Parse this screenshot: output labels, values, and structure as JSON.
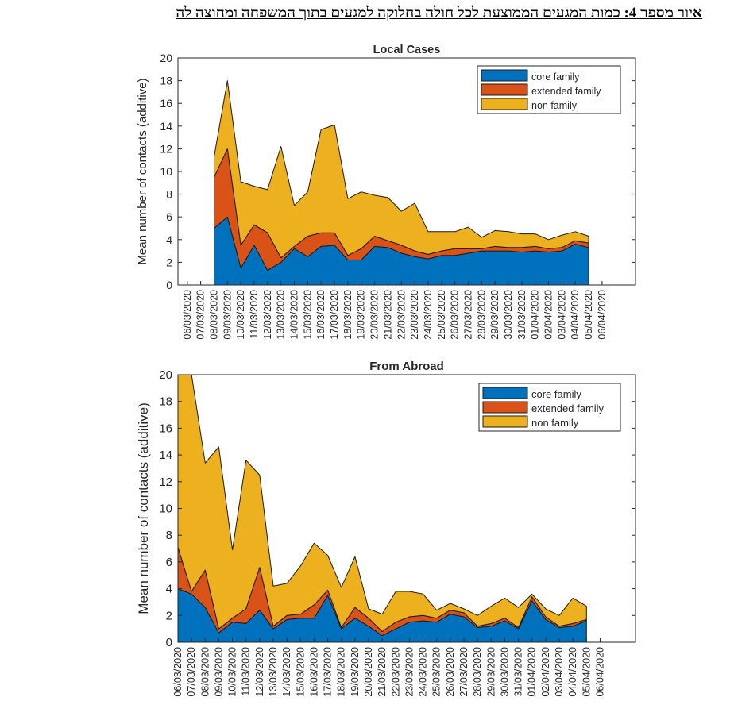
{
  "figure_title": "איור מספר 4: כמות המגעים הממוצעת לכל חולה בחלוקה למגעים בתוך המשפחה ומחוצה לה",
  "chart_data": [
    {
      "type": "area",
      "stacked": true,
      "title": "Local Cases",
      "xlabel": "",
      "ylabel": "Mean number of contacts (additive)",
      "ylim": [
        0,
        20
      ],
      "yticks": [
        0,
        2,
        4,
        6,
        8,
        10,
        12,
        14,
        16,
        18,
        20
      ],
      "grid": false,
      "legend_position": "top-right",
      "categories": [
        "06/03/2020",
        "07/03/2020",
        "08/03/2020",
        "09/03/2020",
        "10/03/2020",
        "11/03/2020",
        "12/03/2020",
        "13/03/2020",
        "14/03/2020",
        "15/03/2020",
        "16/03/2020",
        "17/03/2020",
        "18/03/2020",
        "19/03/2020",
        "20/03/2020",
        "21/03/2020",
        "22/03/2020",
        "23/03/2020",
        "24/03/2020",
        "25/03/2020",
        "26/03/2020",
        "27/03/2020",
        "28/03/2020",
        "29/03/2020",
        "30/03/2020",
        "31/03/2020",
        "01/04/2020",
        "02/04/2020",
        "03/04/2020",
        "04/04/2020",
        "05/04/2020",
        "06/04/2020"
      ],
      "x_positions": [
        1,
        2,
        3,
        4,
        5,
        6,
        7,
        8,
        9,
        10,
        11,
        12,
        13,
        14,
        15,
        16,
        17,
        18,
        19,
        20,
        21,
        22,
        23,
        24,
        25,
        26,
        27,
        28,
        29,
        30,
        31,
        32
      ],
      "xlim": [
        0.3,
        34.5
      ],
      "series": [
        {
          "name": "core family",
          "color": "#0072BD",
          "values": [
            null,
            null,
            5.0,
            6.0,
            1.5,
            3.5,
            1.3,
            2.0,
            3.2,
            2.5,
            3.4,
            3.5,
            2.2,
            2.2,
            3.4,
            3.3,
            2.8,
            2.5,
            2.3,
            2.6,
            2.6,
            2.8,
            3.0,
            3.0,
            3.0,
            2.9,
            3.0,
            2.9,
            3.0,
            3.6,
            3.3,
            null
          ]
        },
        {
          "name": "extended family",
          "color": "#D95319",
          "values": [
            null,
            null,
            4.5,
            6.0,
            2.0,
            1.8,
            3.3,
            0.4,
            0.2,
            1.8,
            1.2,
            1.1,
            0.4,
            1.0,
            0.9,
            0.6,
            0.7,
            0.5,
            0.4,
            0.4,
            0.6,
            0.4,
            0.2,
            0.4,
            0.3,
            0.4,
            0.4,
            0.3,
            0.3,
            0.3,
            0.4,
            null
          ]
        },
        {
          "name": "non family",
          "color": "#EDB120",
          "values": [
            null,
            null,
            1.8,
            6.0,
            5.6,
            3.4,
            3.8,
            9.8,
            3.6,
            3.9,
            9.1,
            9.5,
            5.0,
            5.0,
            3.6,
            3.8,
            3.0,
            4.2,
            2.0,
            1.7,
            1.5,
            1.9,
            1.0,
            1.4,
            1.4,
            1.2,
            1.1,
            0.8,
            1.1,
            0.8,
            0.6,
            null
          ]
        }
      ]
    },
    {
      "type": "area",
      "stacked": true,
      "title": "From Abroad",
      "xlabel": "",
      "ylabel": "Mean number of contacts (additive)",
      "ylim": [
        0,
        20
      ],
      "yticks": [
        0,
        2,
        4,
        6,
        8,
        10,
        12,
        14,
        16,
        18,
        20
      ],
      "grid": false,
      "legend_position": "top-right",
      "categories": [
        "06/03/2020",
        "07/03/2020",
        "08/03/2020",
        "09/03/2020",
        "10/03/2020",
        "11/03/2020",
        "12/03/2020",
        "13/03/2020",
        "14/03/2020",
        "15/03/2020",
        "16/03/2020",
        "17/03/2020",
        "18/03/2020",
        "19/03/2020",
        "20/03/2020",
        "21/03/2020",
        "22/03/2020",
        "23/03/2020",
        "24/03/2020",
        "25/03/2020",
        "26/03/2020",
        "27/03/2020",
        "28/03/2020",
        "29/03/2020",
        "30/03/2020",
        "31/03/2020",
        "01/04/2020",
        "02/04/2020",
        "03/04/2020",
        "04/04/2020",
        "05/04/2020",
        "06/04/2020"
      ],
      "x_positions": [
        1,
        2,
        3,
        4,
        5,
        6,
        7,
        8,
        9,
        10,
        11,
        12,
        13,
        14,
        15,
        16,
        17,
        18,
        19,
        20,
        21,
        22,
        23,
        24,
        25,
        26,
        27,
        28,
        29,
        30,
        31,
        32
      ],
      "xlim": [
        1.0,
        34.6
      ],
      "series": [
        {
          "name": "core family",
          "color": "#0072BD",
          "values": [
            4.0,
            3.6,
            2.6,
            0.7,
            1.5,
            1.4,
            2.4,
            1.0,
            1.7,
            1.8,
            1.8,
            3.5,
            1.0,
            1.8,
            1.2,
            0.5,
            1.0,
            1.5,
            1.6,
            1.5,
            2.1,
            1.9,
            1.1,
            1.2,
            1.6,
            1.0,
            3.1,
            1.7,
            1.1,
            1.2,
            1.6,
            null
          ]
        },
        {
          "name": "extended family",
          "color": "#D95319",
          "values": [
            3.1,
            0.2,
            2.8,
            0.3,
            0.3,
            1.1,
            3.2,
            0.2,
            0.3,
            0.3,
            1.0,
            0.4,
            0.1,
            0.8,
            0.6,
            0.3,
            0.5,
            0.4,
            0.4,
            0.3,
            0.3,
            0.3,
            0.1,
            0.2,
            0.2,
            0.1,
            0.3,
            0.2,
            0.1,
            0.2,
            0.1,
            null
          ]
        },
        {
          "name": "non family",
          "color": "#EDB120",
          "values": [
            12.9,
            16.2,
            8.0,
            13.6,
            5.1,
            11.1,
            6.9,
            3.0,
            2.4,
            3.6,
            4.6,
            2.6,
            3.0,
            3.8,
            0.7,
            1.3,
            2.3,
            1.9,
            1.6,
            0.6,
            0.5,
            0.3,
            0.8,
            1.3,
            1.5,
            1.5,
            0.2,
            0.6,
            0.8,
            1.9,
            1.0,
            null
          ]
        }
      ]
    }
  ]
}
